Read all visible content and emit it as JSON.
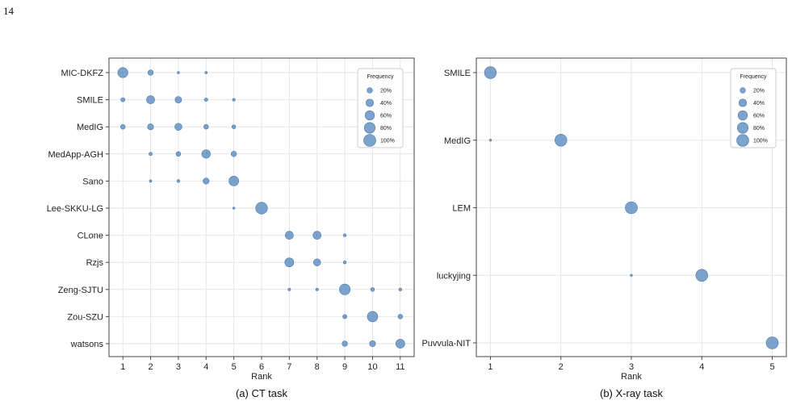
{
  "page_number": "14",
  "colors": {
    "marker": "#5b8cc0",
    "marker_edge": "#4a78a8",
    "grid": "#e6e6e6",
    "axis": "#444444"
  },
  "chart_data": [
    {
      "type": "scatter",
      "caption": "(a) CT task",
      "xlabel": "Rank",
      "ylabel": "",
      "x_ticks": [
        1,
        2,
        3,
        4,
        5,
        6,
        7,
        8,
        9,
        10,
        11
      ],
      "xlim": [
        0.5,
        11.5
      ],
      "categories": [
        "MIC-DKFZ",
        "SMILE",
        "MedIG",
        "MedApp-AGH",
        "Sano",
        "Lee-SKKU-LG",
        "CLone",
        "Rzjs",
        "Zeng-SJTU",
        "Zou-SZU",
        "watsons"
      ],
      "grid": true,
      "legend": {
        "title": "Frequency",
        "entries": [
          "20%",
          "40%",
          "60%",
          "80%",
          "100%"
        ],
        "values": [
          20,
          40,
          60,
          80,
          100
        ],
        "placement": "top-right"
      },
      "points": [
        {
          "team": "MIC-DKFZ",
          "rank": 1,
          "freq": 70
        },
        {
          "team": "MIC-DKFZ",
          "rank": 2,
          "freq": 20
        },
        {
          "team": "MIC-DKFZ",
          "rank": 3,
          "freq": 4
        },
        {
          "team": "MIC-DKFZ",
          "rank": 4,
          "freq": 4
        },
        {
          "team": "SMILE",
          "rank": 1,
          "freq": 12
        },
        {
          "team": "SMILE",
          "rank": 2,
          "freq": 45
        },
        {
          "team": "SMILE",
          "rank": 3,
          "freq": 30
        },
        {
          "team": "SMILE",
          "rank": 4,
          "freq": 8
        },
        {
          "team": "SMILE",
          "rank": 5,
          "freq": 5
        },
        {
          "team": "MedIG",
          "rank": 1,
          "freq": 15
        },
        {
          "team": "MedIG",
          "rank": 2,
          "freq": 25
        },
        {
          "team": "MedIG",
          "rank": 3,
          "freq": 35
        },
        {
          "team": "MedIG",
          "rank": 4,
          "freq": 15
        },
        {
          "team": "MedIG",
          "rank": 5,
          "freq": 10
        },
        {
          "team": "MedApp-AGH",
          "rank": 2,
          "freq": 8
        },
        {
          "team": "MedApp-AGH",
          "rank": 3,
          "freq": 15
        },
        {
          "team": "MedApp-AGH",
          "rank": 4,
          "freq": 50
        },
        {
          "team": "MedApp-AGH",
          "rank": 5,
          "freq": 20
        },
        {
          "team": "Sano",
          "rank": 2,
          "freq": 4
        },
        {
          "team": "Sano",
          "rank": 3,
          "freq": 6
        },
        {
          "team": "Sano",
          "rank": 4,
          "freq": 25
        },
        {
          "team": "Sano",
          "rank": 5,
          "freq": 65
        },
        {
          "team": "Lee-SKKU-LG",
          "rank": 5,
          "freq": 3
        },
        {
          "team": "Lee-SKKU-LG",
          "rank": 6,
          "freq": 95
        },
        {
          "team": "CLone",
          "rank": 7,
          "freq": 45
        },
        {
          "team": "CLone",
          "rank": 8,
          "freq": 45
        },
        {
          "team": "CLone",
          "rank": 9,
          "freq": 6
        },
        {
          "team": "Rzjs",
          "rank": 7,
          "freq": 55
        },
        {
          "team": "Rzjs",
          "rank": 8,
          "freq": 35
        },
        {
          "team": "Rzjs",
          "rank": 9,
          "freq": 6
        },
        {
          "team": "Zeng-SJTU",
          "rank": 7,
          "freq": 5
        },
        {
          "team": "Zeng-SJTU",
          "rank": 8,
          "freq": 5
        },
        {
          "team": "Zeng-SJTU",
          "rank": 9,
          "freq": 80
        },
        {
          "team": "Zeng-SJTU",
          "rank": 10,
          "freq": 10
        },
        {
          "team": "Zeng-SJTU",
          "rank": 11,
          "freq": 6
        },
        {
          "team": "Zou-SZU",
          "rank": 9,
          "freq": 12
        },
        {
          "team": "Zou-SZU",
          "rank": 10,
          "freq": 75
        },
        {
          "team": "Zou-SZU",
          "rank": 11,
          "freq": 15
        },
        {
          "team": "watsons",
          "rank": 9,
          "freq": 20
        },
        {
          "team": "watsons",
          "rank": 10,
          "freq": 25
        },
        {
          "team": "watsons",
          "rank": 11,
          "freq": 55
        }
      ]
    },
    {
      "type": "scatter",
      "caption": "(b) X-ray task",
      "xlabel": "Rank",
      "ylabel": "",
      "x_ticks": [
        1,
        2,
        3,
        4,
        5
      ],
      "xlim": [
        0.8,
        5.2
      ],
      "categories": [
        "SMILE",
        "MedIG",
        "LEM",
        "luckyjing",
        "Puvvula-NIT"
      ],
      "grid": true,
      "legend": {
        "title": "Frequency",
        "entries": [
          "20%",
          "40%",
          "60%",
          "80%",
          "100%"
        ],
        "values": [
          20,
          40,
          60,
          80,
          100
        ],
        "placement": "top-right"
      },
      "points": [
        {
          "team": "SMILE",
          "rank": 1,
          "freq": 97
        },
        {
          "team": "MedIG",
          "rank": 1,
          "freq": 3
        },
        {
          "team": "MedIG",
          "rank": 2,
          "freq": 97
        },
        {
          "team": "LEM",
          "rank": 3,
          "freq": 100
        },
        {
          "team": "luckyjing",
          "rank": 3,
          "freq": 3
        },
        {
          "team": "luckyjing",
          "rank": 4,
          "freq": 97
        },
        {
          "team": "Puvvula-NIT",
          "rank": 5,
          "freq": 100
        }
      ]
    }
  ]
}
